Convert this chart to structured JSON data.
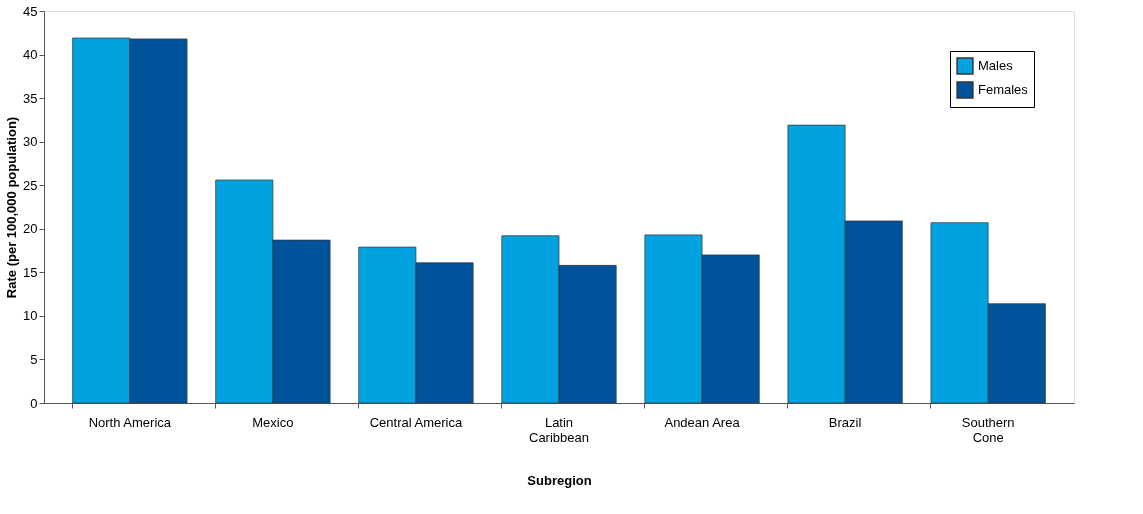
{
  "chart_data": {
    "type": "bar",
    "xlabel": "Subregion",
    "ylabel": "Rate (per 100,000 population)",
    "categories": [
      "North America",
      "Mexico",
      "Central America",
      "Latin\nCaribbean",
      "Andean Area",
      "Brazil",
      "Southern\nCone"
    ],
    "series": [
      {
        "name": "Males",
        "color": "#00a3e0",
        "values": [
          41.9,
          25.6,
          17.9,
          19.2,
          19.3,
          31.9,
          20.7
        ]
      },
      {
        "name": "Females",
        "color": "#00539b",
        "values": [
          41.8,
          18.7,
          16.1,
          15.8,
          17.0,
          20.9,
          11.4
        ]
      }
    ],
    "ylim": [
      0,
      45
    ],
    "yticks": [
      0,
      5,
      10,
      15,
      20,
      25,
      30,
      35,
      40,
      45
    ],
    "grid": false,
    "legend": "top right"
  }
}
